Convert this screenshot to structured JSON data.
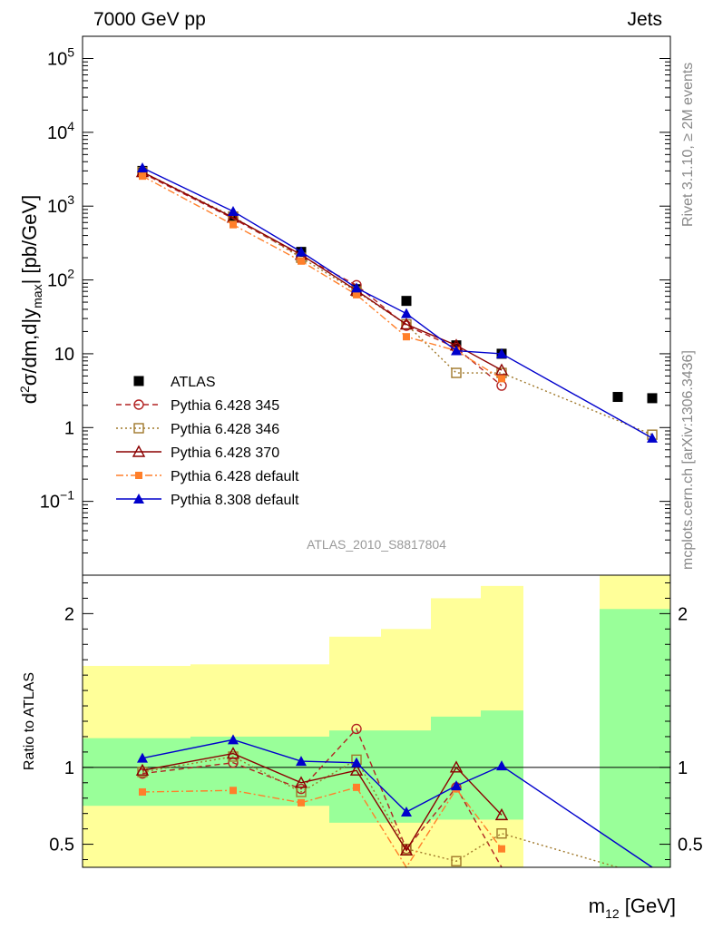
{
  "header": {
    "left": "7000 GeV pp",
    "right": "Jets"
  },
  "side_text": {
    "top": "Rivet 3.1.10, ≥ 2M events",
    "bottom": "mcplots.cern.ch [arXiv:1306.3436]"
  },
  "watermark": "ATLAS_2010_S8817804",
  "chart_data": [
    {
      "type": "scatter",
      "panel": "main",
      "ylabel": "d²σ/dm,d|y_max| [pb/GeV]",
      "yscale": "log",
      "ylim": [
        0.01,
        200000
      ],
      "y_ticks": [
        "10^5",
        "10^4",
        "10^3",
        "10^2",
        "10",
        "1",
        "10^-1"
      ],
      "x": [
        1,
        2,
        3,
        4,
        5,
        6,
        7,
        8,
        9
      ],
      "legend_position": "left",
      "series": [
        {
          "name": "ATLAS",
          "color": "#000000",
          "marker": "filled-square",
          "line": "none",
          "values": [
            3000,
            720,
            240,
            75,
            52,
            13,
            10,
            2.6,
            2.5
          ]
        },
        {
          "name": "Pythia 6.428 345",
          "color": "#b22222",
          "marker": "open-circle",
          "line": "dashed",
          "values": [
            2800,
            680,
            210,
            85,
            24,
            12,
            3.7,
            null,
            null
          ]
        },
        {
          "name": "Pythia 6.428 346",
          "color": "#a0782a",
          "marker": "open-square",
          "line": "dotted",
          "values": [
            2900,
            720,
            200,
            70,
            25,
            5.5,
            5.5,
            null,
            0.8
          ]
        },
        {
          "name": "Pythia 6.428 370",
          "color": "#8b0000",
          "marker": "open-triangle",
          "line": "solid",
          "values": [
            2900,
            700,
            220,
            72,
            25,
            13,
            6,
            null,
            null
          ]
        },
        {
          "name": "Pythia 6.428 default",
          "color": "#ff7f2a",
          "marker": "filled-square-small",
          "line": "dash-dot",
          "values": [
            2550,
            560,
            180,
            63,
            17,
            11,
            4.6,
            null,
            null
          ]
        },
        {
          "name": "Pythia 8.308 default",
          "color": "#0000cc",
          "marker": "filled-triangle",
          "line": "solid",
          "values": [
            3300,
            850,
            240,
            78,
            35,
            11,
            10,
            null,
            0.72
          ]
        }
      ]
    },
    {
      "type": "line",
      "panel": "ratio",
      "xlabel": "m₁₂ [GeV]",
      "ylabel": "Ratio to ATLAS",
      "ylim": [
        0.35,
        2.25
      ],
      "y_ticks": [
        0.5,
        1,
        2
      ],
      "x": [
        1,
        2,
        3,
        4,
        5,
        6,
        7,
        8,
        9
      ],
      "bands": {
        "inner_color": "#99ff99",
        "outer_color": "#ffff99",
        "inner": [
          [
            0.75,
            1.19
          ],
          [
            0.75,
            1.2
          ],
          [
            0.75,
            1.2
          ],
          [
            0.64,
            1.24
          ],
          [
            0.64,
            1.24
          ],
          [
            0.66,
            1.33
          ],
          [
            0.66,
            1.37
          ],
          [
            null,
            null
          ],
          [
            0.25,
            2.03
          ]
        ],
        "outer": [
          [
            0.35,
            1.66
          ],
          [
            0.35,
            1.67
          ],
          [
            0.35,
            1.67
          ],
          [
            0.35,
            1.85
          ],
          [
            0.35,
            1.9
          ],
          [
            0.35,
            2.1
          ],
          [
            0.35,
            2.18
          ],
          [
            null,
            null
          ],
          [
            0.35,
            2.25
          ]
        ]
      },
      "series": [
        {
          "name": "Pythia 6.428 345",
          "values": [
            0.96,
            1.03,
            0.86,
            1.25,
            0.47,
            0.87,
            0.3,
            null,
            null
          ]
        },
        {
          "name": "Pythia 6.428 346",
          "values": [
            0.97,
            1.07,
            0.84,
            1.05,
            0.47,
            0.39,
            0.57,
            0.34,
            null
          ]
        },
        {
          "name": "Pythia 6.428 370",
          "values": [
            0.98,
            1.09,
            0.9,
            0.98,
            0.46,
            1.0,
            0.69,
            null,
            null
          ]
        },
        {
          "name": "Pythia 6.428 default",
          "values": [
            0.84,
            0.85,
            0.77,
            0.87,
            0.3,
            0.86,
            0.47,
            null,
            null
          ]
        },
        {
          "name": "Pythia 8.308 default",
          "values": [
            1.06,
            1.18,
            1.04,
            1.03,
            0.71,
            0.88,
            1.01,
            null,
            0.3
          ]
        }
      ]
    }
  ]
}
